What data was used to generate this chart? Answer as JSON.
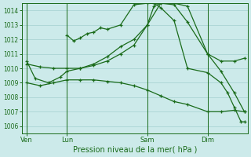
{
  "title": "Pression niveau de la mer( hPa )",
  "bg_color": "#cceaea",
  "grid_color": "#aad4d4",
  "line_color": "#1a6b1a",
  "ylim": [
    1005.5,
    1014.5
  ],
  "yticks": [
    1006,
    1007,
    1008,
    1009,
    1010,
    1011,
    1012,
    1013,
    1014
  ],
  "xtick_labels": [
    "Ven",
    "Lun",
    "Sam",
    "Dim"
  ],
  "xtick_positions": [
    0,
    24,
    72,
    108
  ],
  "vline_positions": [
    0,
    24,
    72,
    108
  ],
  "xlim": [
    -3,
    132
  ],
  "series": [
    {
      "x": [
        0,
        5,
        13,
        20,
        24,
        32,
        40,
        48,
        56,
        64,
        72,
        76,
        80,
        88,
        96,
        108,
        116,
        124,
        130
      ],
      "y": [
        1010.5,
        1009.3,
        1009.0,
        1009.4,
        1009.8,
        1010.0,
        1010.3,
        1010.8,
        1011.5,
        1012.0,
        1013.0,
        1014.3,
        1014.5,
        1014.4,
        1013.2,
        1011.0,
        1009.8,
        1008.3,
        1007.0
      ]
    },
    {
      "x": [
        0,
        8,
        16,
        24,
        32,
        40,
        48,
        56,
        64,
        72,
        80,
        88,
        96,
        108,
        116,
        124,
        130
      ],
      "y": [
        1009.0,
        1008.8,
        1009.0,
        1009.2,
        1009.2,
        1009.2,
        1009.1,
        1009.0,
        1008.8,
        1008.5,
        1008.1,
        1007.7,
        1007.5,
        1007.0,
        1007.0,
        1007.1,
        1007.0
      ]
    },
    {
      "x": [
        0,
        8,
        16,
        24,
        32,
        40,
        48,
        56,
        64,
        72,
        80,
        88,
        96,
        108,
        116,
        124,
        130
      ],
      "y": [
        1010.3,
        1010.1,
        1010.0,
        1010.0,
        1010.0,
        1010.2,
        1010.5,
        1011.0,
        1011.6,
        1013.0,
        1014.5,
        1014.5,
        1014.3,
        1011.0,
        1010.5,
        1010.5,
        1010.7
      ]
    },
    {
      "x": [
        24,
        28,
        32,
        36,
        40,
        44,
        48,
        56,
        64,
        72,
        76,
        80,
        88,
        96,
        108,
        116,
        120,
        124,
        128,
        130
      ],
      "y": [
        1012.3,
        1011.9,
        1012.1,
        1012.4,
        1012.5,
        1012.8,
        1012.7,
        1013.0,
        1014.4,
        1014.5,
        1014.5,
        1014.2,
        1013.3,
        1010.0,
        1009.7,
        1009.0,
        1008.3,
        1007.3,
        1006.3,
        1006.3
      ]
    }
  ]
}
